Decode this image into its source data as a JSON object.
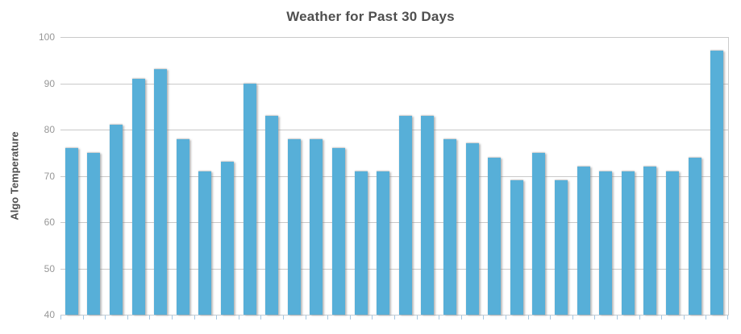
{
  "chart_data": {
    "type": "bar",
    "title": "Weather for Past 30 Days",
    "xlabel": "",
    "ylabel": "Algo Temperature",
    "ylim": [
      40,
      100
    ],
    "yticks": [
      40,
      50,
      60,
      70,
      80,
      90,
      100
    ],
    "values": [
      76,
      75,
      81,
      91,
      93,
      78,
      71,
      73,
      90,
      83,
      78,
      78,
      76,
      71,
      71,
      83,
      83,
      78,
      77,
      74,
      69,
      75,
      69,
      72,
      71,
      71,
      72,
      71,
      74,
      97
    ],
    "grid": "horizontal",
    "legend": "none",
    "bar_color": "#57afd8",
    "gridline_color": "#c9c9c9",
    "axis_line_color": "#c3ccd3",
    "tick_mark_color": "#a5c7e2",
    "title_color": "#4f4f4f",
    "tick_label_color": "#979797"
  }
}
